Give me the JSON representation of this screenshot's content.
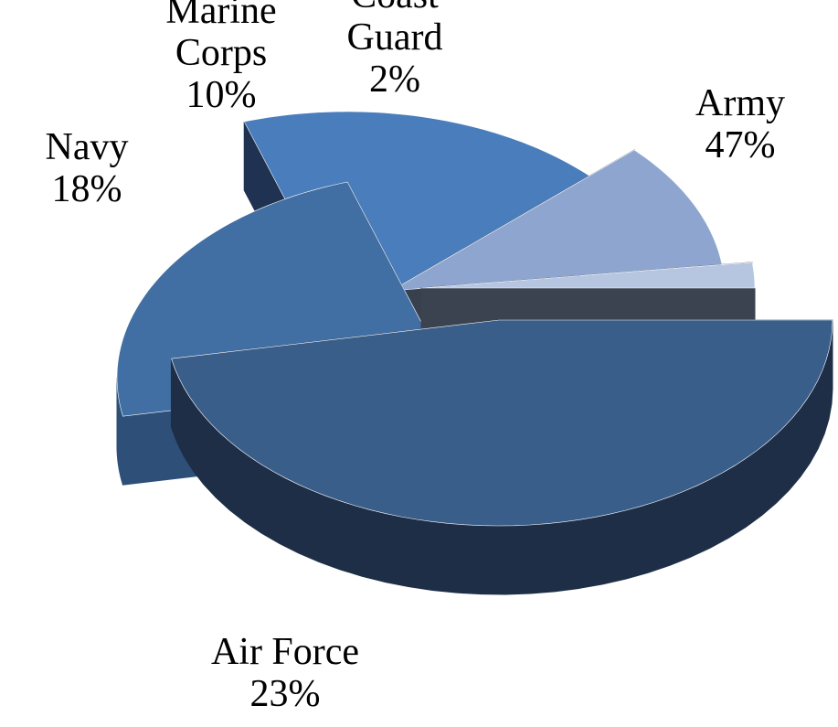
{
  "chart_data": {
    "type": "pie",
    "variant": "3d-exploded",
    "start_angle_deg": 0,
    "direction": "clockwise",
    "slices": [
      {
        "name": "Army",
        "value": 47,
        "label_lines": [
          "Army",
          "47%"
        ],
        "color": "#3A5E8A",
        "side_color": "#1E2E47"
      },
      {
        "name": "Air Force",
        "value": 23,
        "label_lines": [
          "Air Force",
          "23%"
        ],
        "color": "#416FA3",
        "side_color": "#2E4F77"
      },
      {
        "name": "Navy",
        "value": 18,
        "label_lines": [
          "Navy",
          "18%"
        ],
        "color": "#4A7DBB",
        "side_color": "#1F3251"
      },
      {
        "name": "Marine Corps",
        "value": 10,
        "label_lines": [
          "Marine",
          "Corps",
          "10%"
        ],
        "color": "#8EA6CF",
        "side_color": "#383F4D"
      },
      {
        "name": "Coast Guard",
        "value": 2,
        "label_lines": [
          "Coast",
          "Guard",
          "2%"
        ],
        "color": "#B6C6E1",
        "side_color": "#3C4350"
      }
    ]
  }
}
